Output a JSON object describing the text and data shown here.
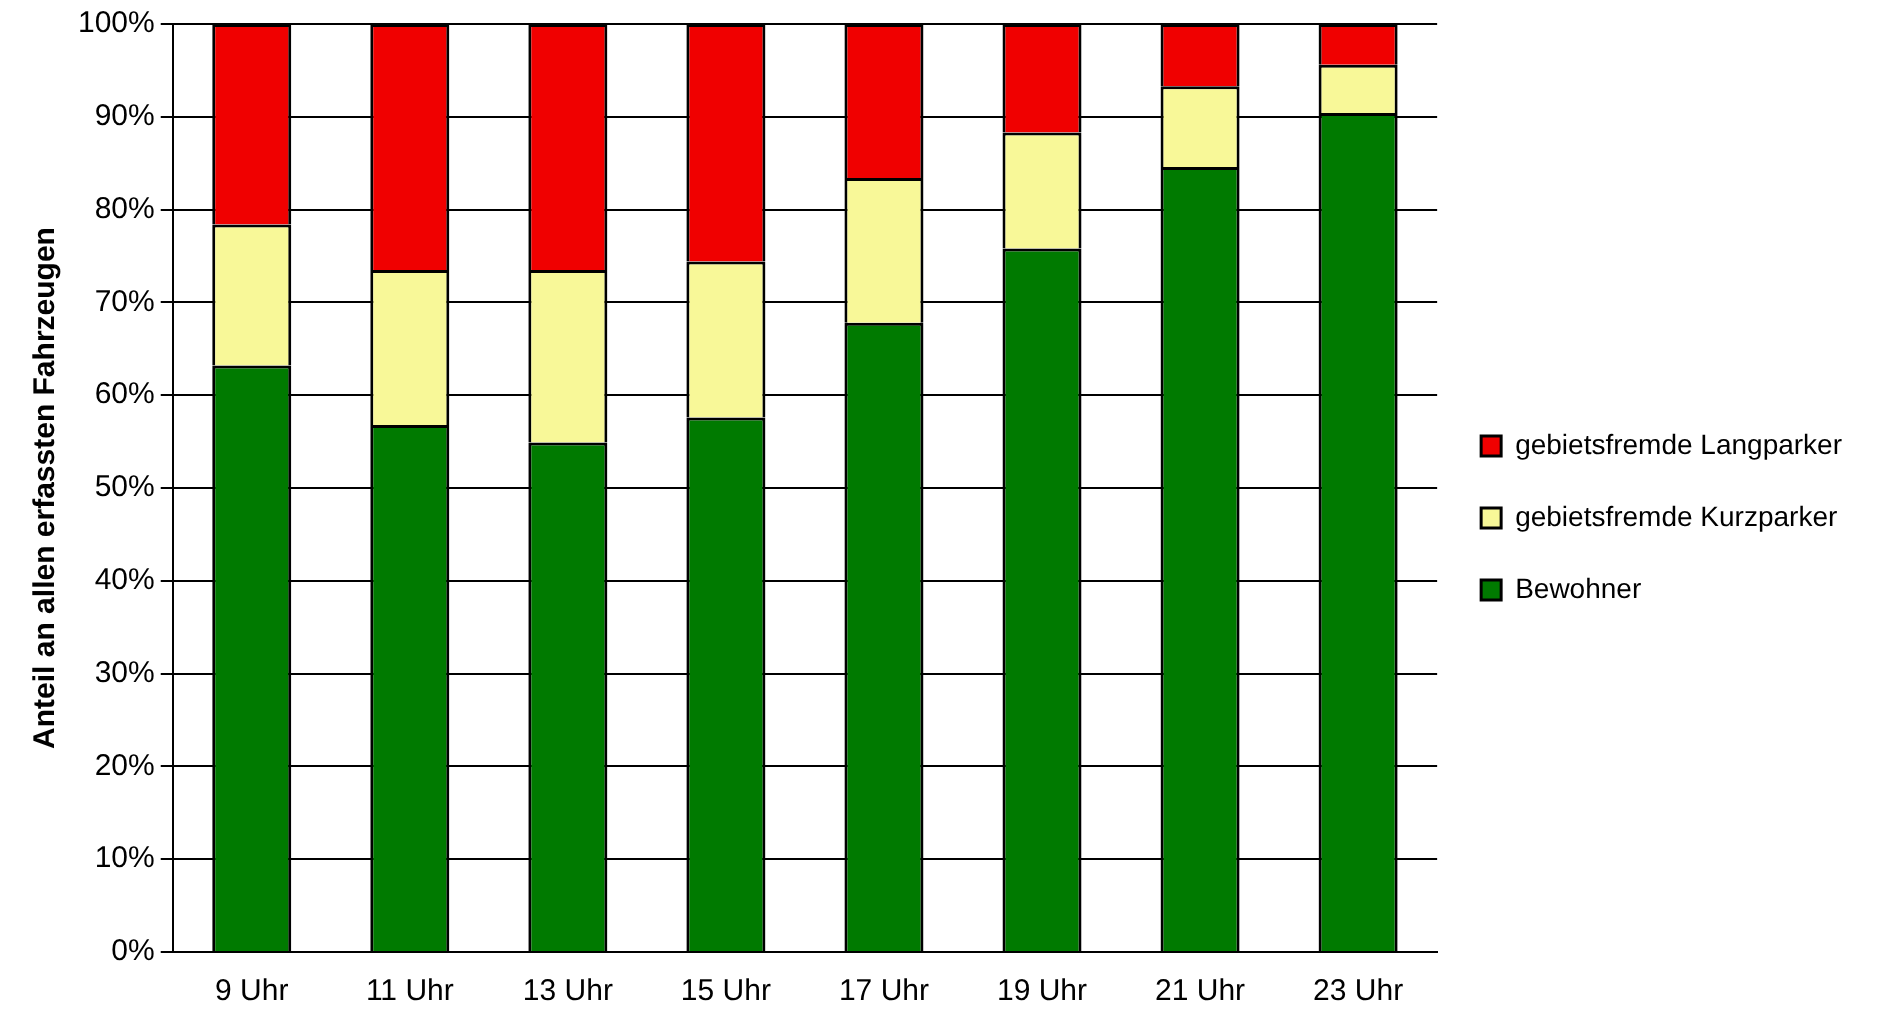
{
  "chart_data": {
    "type": "bar",
    "stacked": true,
    "ylabel": "Anteil an allen erfassten Fahrzeugen",
    "categories": [
      "9 Uhr",
      "11 Uhr",
      "13 Uhr",
      "15 Uhr",
      "17 Uhr",
      "19 Uhr",
      "21 Uhr",
      "23 Uhr"
    ],
    "series": [
      {
        "name": "Bewohner",
        "color": "#007a00",
        "values": [
          63.2,
          56.8,
          54.9,
          57.6,
          67.8,
          75.8,
          84.6,
          90.4
        ]
      },
      {
        "name": "gebietsfremde Kurzparker",
        "color": "#f8f898",
        "values": [
          15.2,
          16.7,
          18.6,
          16.8,
          15.6,
          12.5,
          8.7,
          5.2
        ]
      },
      {
        "name": "gebietsfremde Langparker",
        "color": "#f00000",
        "values": [
          21.6,
          26.5,
          26.5,
          25.6,
          16.6,
          11.7,
          6.7,
          4.4
        ]
      }
    ],
    "ylim": [
      0,
      100
    ],
    "yticks": [
      {
        "value": 0,
        "label": "0%"
      },
      {
        "value": 10,
        "label": "10%"
      },
      {
        "value": 20,
        "label": "20%"
      },
      {
        "value": 30,
        "label": "30%"
      },
      {
        "value": 40,
        "label": "40%"
      },
      {
        "value": 50,
        "label": "50%"
      },
      {
        "value": 60,
        "label": "60%"
      },
      {
        "value": 70,
        "label": "70%"
      },
      {
        "value": 80,
        "label": "80%"
      },
      {
        "value": 90,
        "label": "90%"
      },
      {
        "value": 100,
        "label": "100%"
      }
    ],
    "grid": "y",
    "legend": "right"
  }
}
